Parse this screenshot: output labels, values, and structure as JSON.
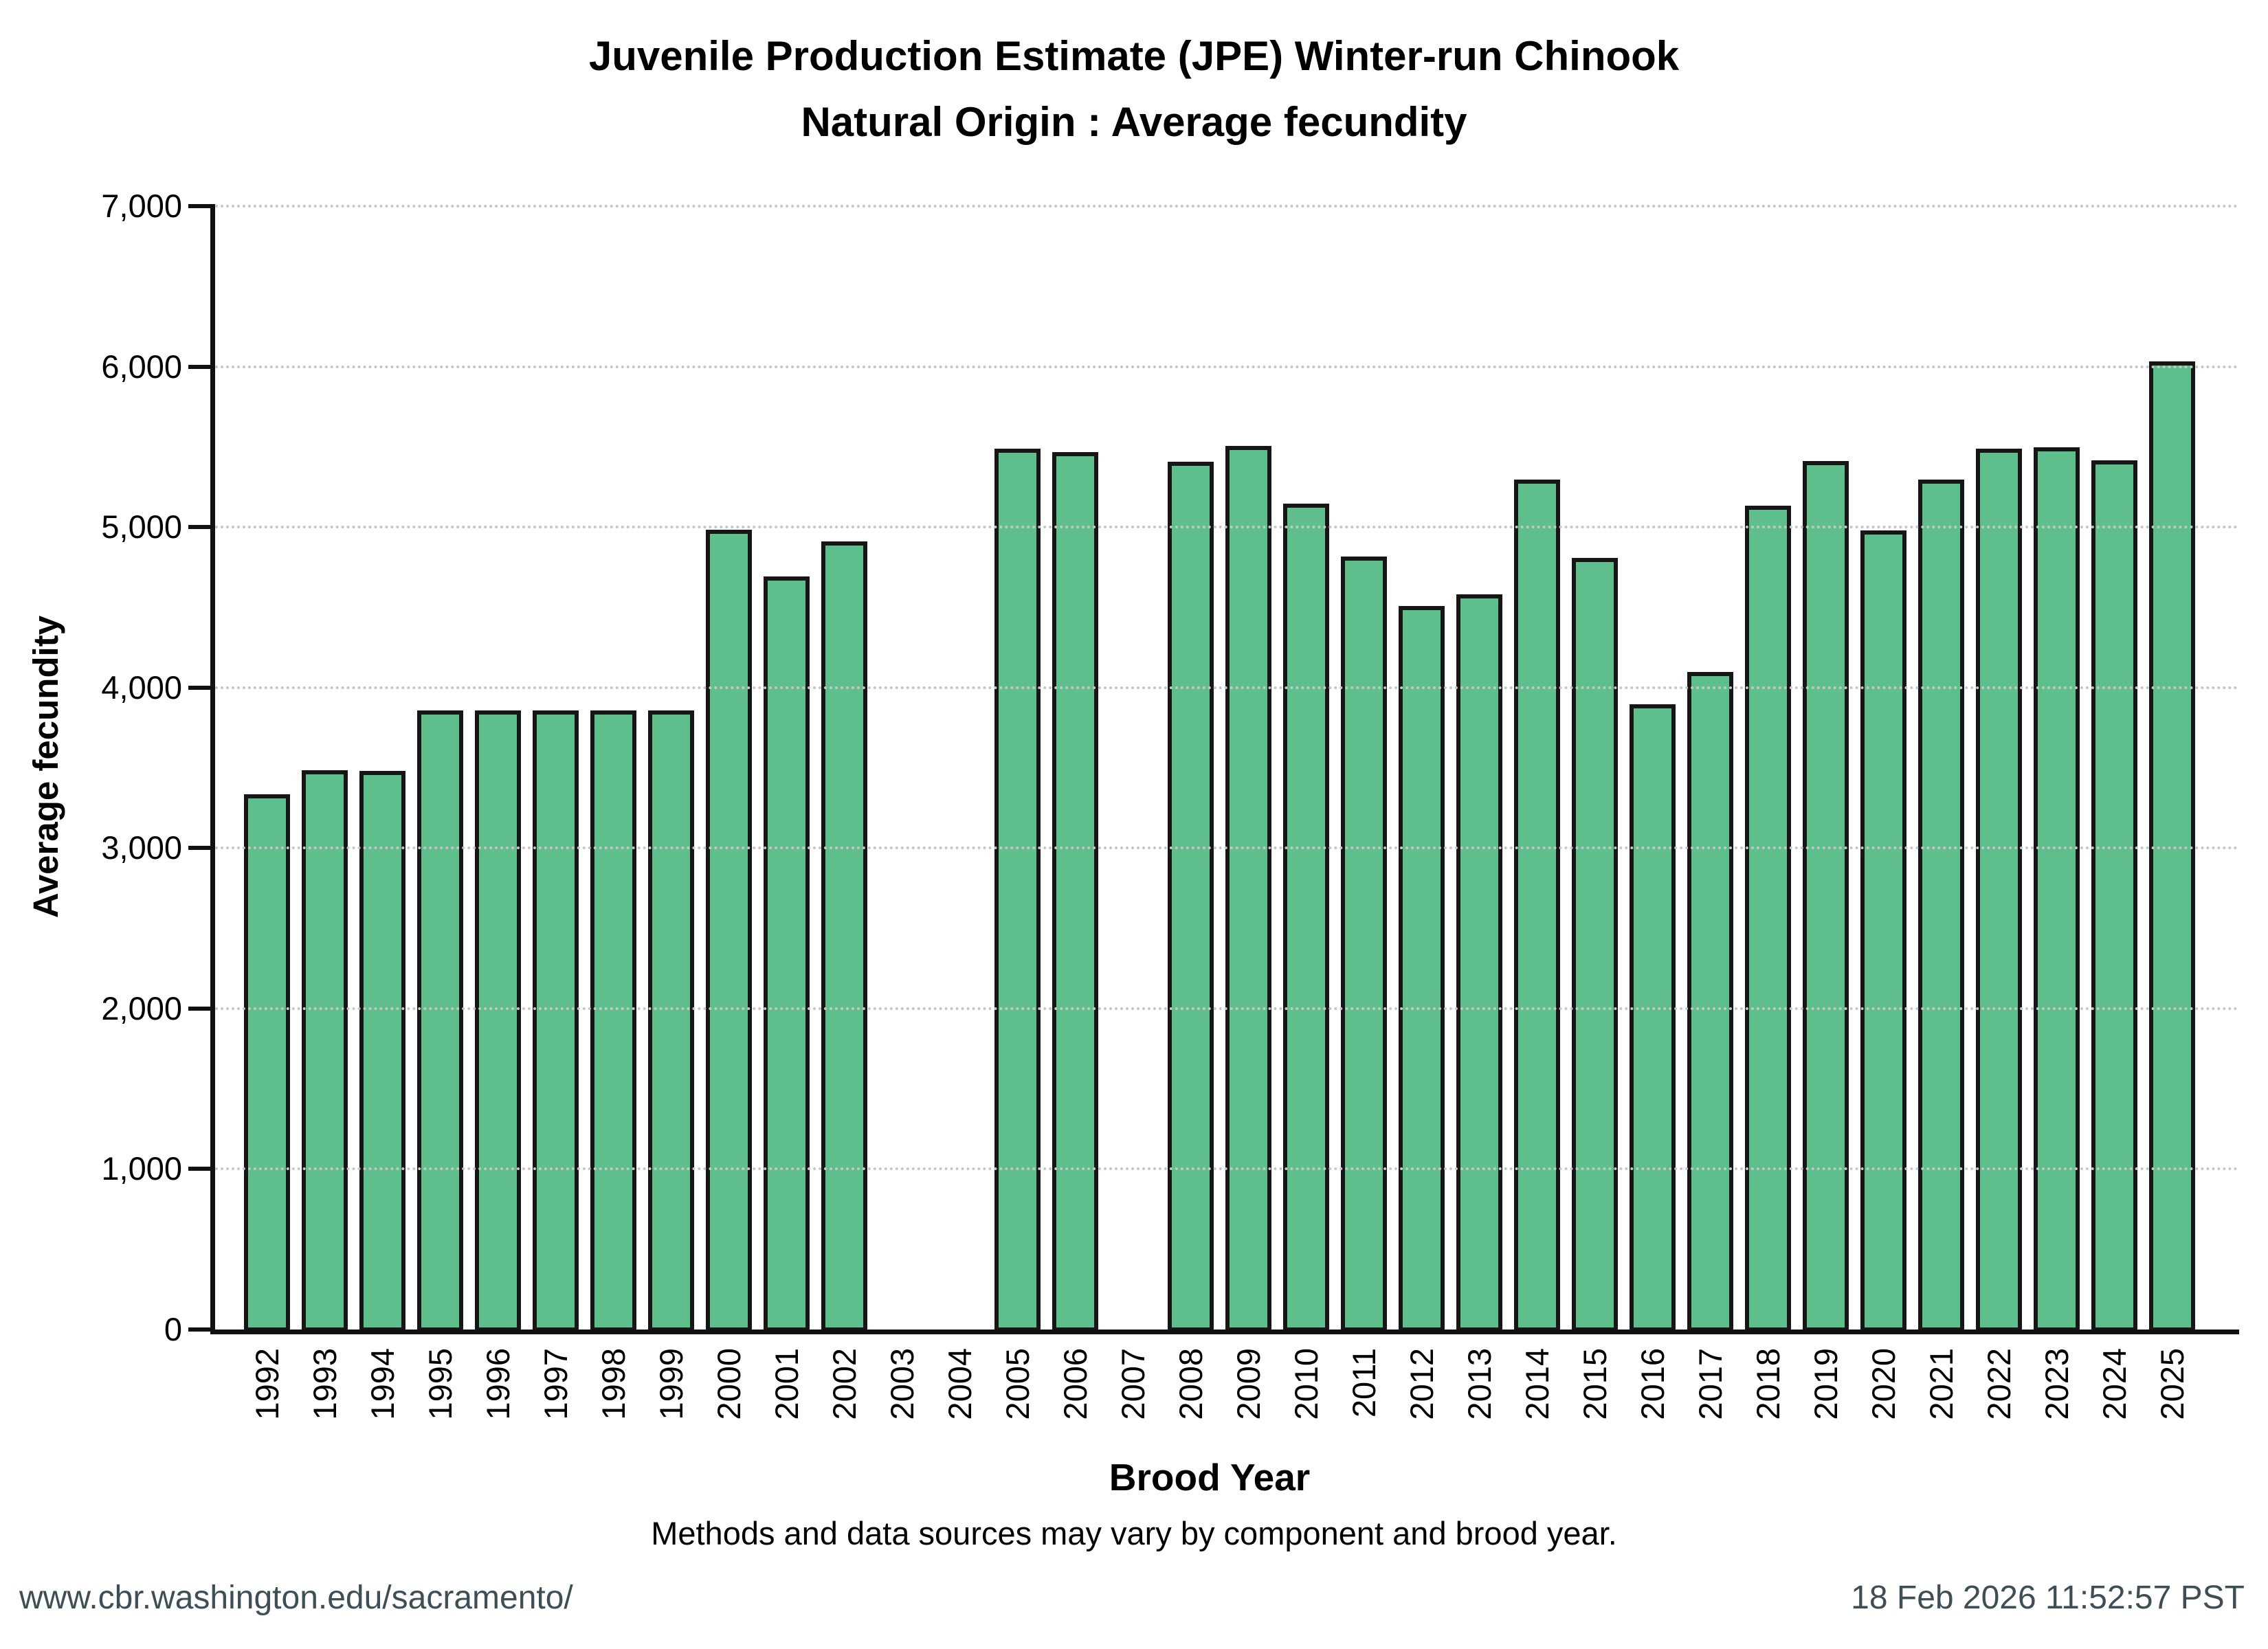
{
  "title": {
    "line1": "Juvenile Production Estimate (JPE) Winter-run Chinook",
    "line2": "Natural Origin : Average fecundity"
  },
  "y_axis": {
    "label": "Average fecundity",
    "tick_labels": [
      "0",
      "1,000",
      "2,000",
      "3,000",
      "4,000",
      "5,000",
      "6,000",
      "7,000"
    ]
  },
  "x_axis": {
    "label": "Brood Year"
  },
  "footnote": "Methods and data sources may vary by component and brood year.",
  "footer": {
    "left": "www.cbr.washington.edu/sacramento/",
    "right": "18 Feb 2026 11:52:57 PST"
  },
  "colors": {
    "bar_fill": "#5fbf8c",
    "bar_border": "#161616",
    "grid": "#c6c6c6",
    "axis": "#111111",
    "footer_text": "#3d4f55"
  },
  "chart_data": {
    "type": "bar",
    "title": "Juvenile Production Estimate (JPE) Winter-run Chinook — Natural Origin : Average fecundity",
    "xlabel": "Brood Year",
    "ylabel": "Average fecundity",
    "ylim": [
      0,
      7000
    ],
    "y_tick_interval": 1000,
    "grid": "horizontal-dotted",
    "legend": "none",
    "missing_years": [
      2003,
      2004,
      2007
    ],
    "categories": [
      1992,
      1993,
      1994,
      1995,
      1996,
      1997,
      1998,
      1999,
      2000,
      2001,
      2002,
      2003,
      2004,
      2005,
      2006,
      2007,
      2008,
      2009,
      2010,
      2011,
      2012,
      2013,
      2014,
      2015,
      2016,
      2017,
      2018,
      2019,
      2020,
      2021,
      2022,
      2023,
      2024,
      2025
    ],
    "values": [
      3350,
      3500,
      3495,
      3870,
      3870,
      3870,
      3870,
      3870,
      4995,
      4705,
      4925,
      null,
      null,
      5500,
      5480,
      null,
      5420,
      5520,
      5160,
      4830,
      4520,
      4595,
      5310,
      4820,
      3910,
      4110,
      5145,
      5425,
      4990,
      5310,
      5500,
      5510,
      5430,
      6045
    ]
  }
}
